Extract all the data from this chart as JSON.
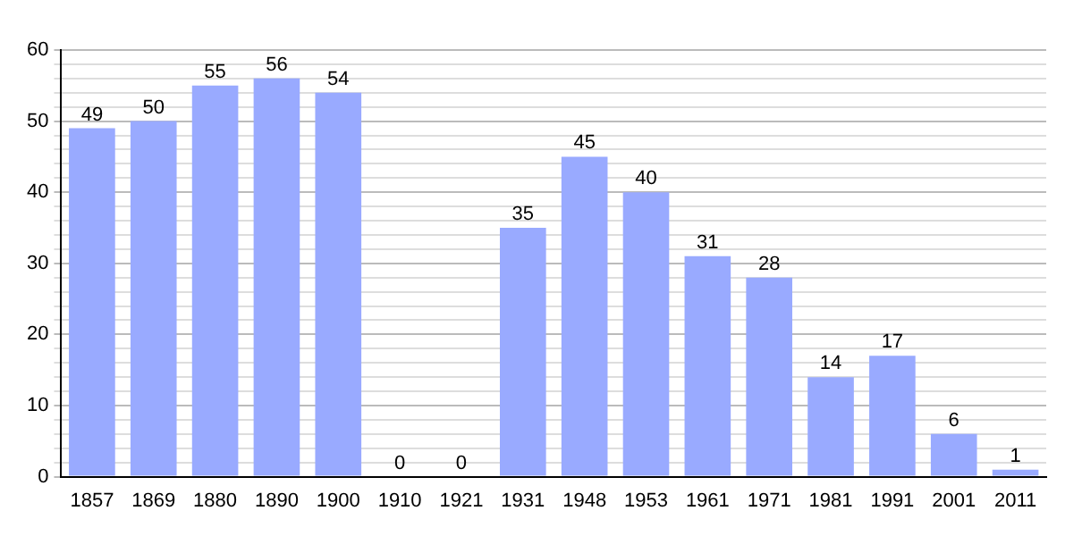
{
  "chart_data": {
    "type": "bar",
    "categories": [
      "1857",
      "1869",
      "1880",
      "1890",
      "1900",
      "1910",
      "1921",
      "1931",
      "1948",
      "1953",
      "1961",
      "1971",
      "1981",
      "1991",
      "2001",
      "2011"
    ],
    "values": [
      49,
      50,
      55,
      56,
      54,
      0,
      0,
      35,
      45,
      40,
      31,
      28,
      14,
      17,
      6,
      1
    ],
    "color": "#99aaff",
    "ylim": [
      0,
      60
    ],
    "yticks": [
      0,
      {
        "value": 2,
        "label": null
      },
      {
        "value": 4,
        "label": null
      },
      {
        "value": 6,
        "label": null
      },
      {
        "value": 8,
        "label": null
      },
      10,
      {
        "value": 12,
        "label": null
      },
      {
        "value": 14,
        "label": null
      },
      {
        "value": 16,
        "label": null
      },
      {
        "value": 18,
        "label": null
      },
      20,
      {
        "value": 22,
        "label": null
      },
      {
        "value": 24,
        "label": null
      },
      {
        "value": 26,
        "label": null
      },
      {
        "value": 28,
        "label": null
      },
      30,
      {
        "value": 32,
        "label": null
      },
      {
        "value": 34,
        "label": null
      },
      {
        "value": 36,
        "label": null
      },
      {
        "value": 38,
        "label": null
      },
      40,
      {
        "value": 42,
        "label": null
      },
      {
        "value": 44,
        "label": null
      },
      {
        "value": 46,
        "label": null
      },
      {
        "value": 48,
        "label": null
      },
      50,
      {
        "value": 52,
        "label": null
      },
      {
        "value": 54,
        "label": null
      },
      {
        "value": 56,
        "label": null
      },
      {
        "value": 58,
        "label": null
      },
      60
    ],
    "grid": "y",
    "data_labels": true
  }
}
